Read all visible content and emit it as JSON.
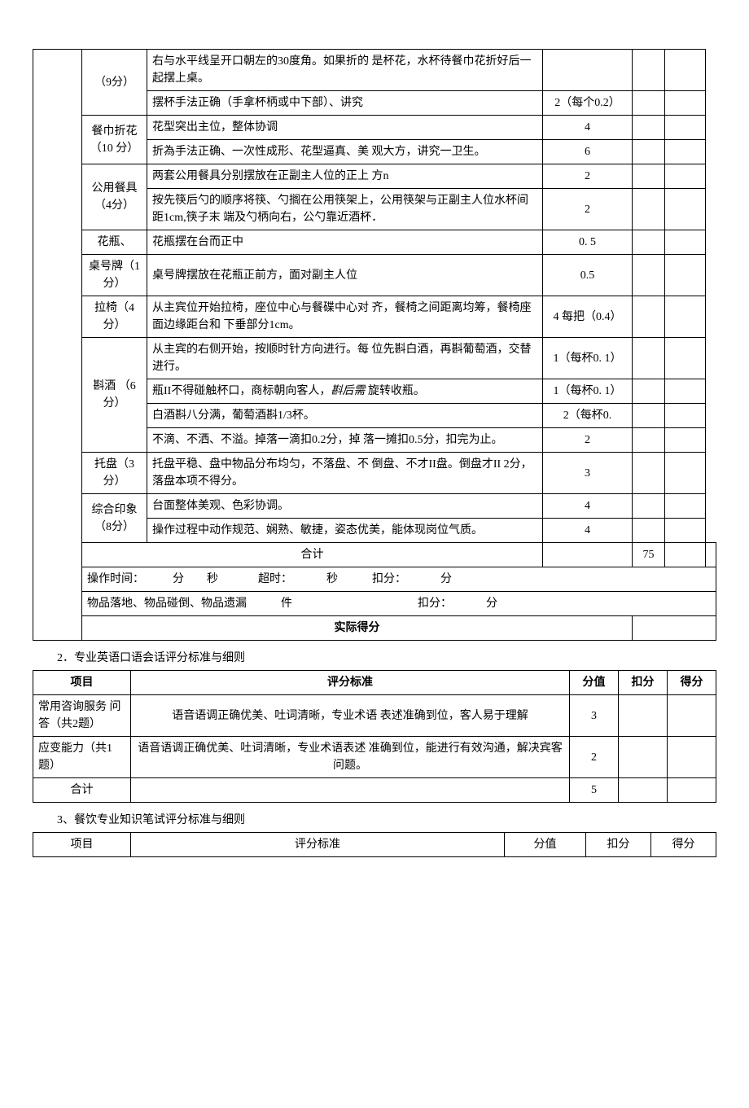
{
  "table1": {
    "rows": [
      {
        "item": "（9分）",
        "desc": "右与水平线呈开口朝左的30度角。如果折的 是杯花，水杯待餐巾花折好后一起摆上桌。",
        "score": ""
      },
      {
        "item": "",
        "desc": "摆杯手法正确（手拿杯柄或中下部）、讲究",
        "score": "2（每个0.2）"
      },
      {
        "item": "餐巾折花（10 分）",
        "desc": "花型突出主位，整体协调",
        "score": "4"
      },
      {
        "item": "",
        "desc": "折為手法正确、一次性成形、花型逼真、美 观大方，讲究一卫生。",
        "score": "6"
      },
      {
        "item": "公用餐具（4分）",
        "desc": "两套公用餐具分别摆放在正副主人位的正上 方n",
        "score": "2"
      },
      {
        "item": "",
        "desc": "按先筷后勺的顺序将筷、勺搁在公用筷架上，公用筷架与正副主人位水杯间距1cm,筷子末 端及勺柄向右，公勺靠近酒杯．",
        "score": "2"
      },
      {
        "item": "花瓶、",
        "desc": "花瓶摆在台而正中",
        "score": "0. 5"
      },
      {
        "item": "桌号牌（1分）",
        "desc": "桌号牌摆放在花瓶正前方，面对副主人位",
        "score": "0.5"
      },
      {
        "item": "拉椅（4分）",
        "desc": "从主宾位开始拉椅，座位中心与餐碟中心对 齐，餐椅之间距离均筹，餐椅座面边缘距台和 下垂部分1cm。",
        "score": "4 每把（0.4）"
      },
      {
        "item": "斟酒 （6分）",
        "desc": "从主宾的右侧开始，按顺时针方向进行。每 位先斟白酒，再斟葡萄酒，交替进行。",
        "score": "1（每杯0. 1）"
      },
      {
        "item": "",
        "desc": "瓶II不得碰触杯口，商标朝向客人，斟后需 旋转收瓶。",
        "score": "1（每杯0. 1）",
        "italic_part": "斟后需"
      },
      {
        "item": "",
        "desc": "白酒斟八分满，葡萄酒斟1/3杯。",
        "score": "2（每杯0."
      },
      {
        "item": "",
        "desc": "不滴、不洒、不溢。掉落一滴扣0.2分，掉 落一摊扣0.5分，扣完为止。",
        "score": "2"
      },
      {
        "item": "托盘（3分）",
        "desc": "托盘平稳、盘中物品分布均匀，不落盘、不 倒盘、不才II盘。倒盘才II 2分，落盘本项不得分。",
        "score": "3"
      },
      {
        "item": "综合印象（8分）",
        "desc": "台面整体美观、色彩协调。",
        "score": "4"
      },
      {
        "item": "",
        "desc": "操作过程中动作规范、娴熟、敏捷，姿态优美，能体现岗位气质。",
        "score": "4"
      }
    ],
    "total_label": "合计",
    "total_score": "75",
    "time_row": "操作时间：          分        秒              超时：            秒            扣分：            分",
    "drop_row": "物品落地、物品碰倒、物品遗漏            件                                            扣分：            分",
    "final_label": "实际得分"
  },
  "section2_title": "2．专业英语口语会话评分标准与细则",
  "table2": {
    "headers": {
      "item": "项目",
      "criteria": "评分标准",
      "score": "分值",
      "deduct": "扣分",
      "final": "得分"
    },
    "rows": [
      {
        "item": "常用咨询服务 问答（共2题）",
        "criteria": "语音语调正确优美、吐词清晰，专业术语 表述准确到位，客人易于理解",
        "score": "3"
      },
      {
        "item": "应变能力（共1题）",
        "criteria": "语音语调正确优美、吐词清晰，专业术语表述 准确到位，能进行有效沟通，解决宾客问题。",
        "score": "2"
      }
    ],
    "total_label": "合计",
    "total_score": "5"
  },
  "section3_title": "3、餐饮专业知识笔试评分标准与细则",
  "table3": {
    "headers": {
      "item": "项目",
      "criteria": "评分标准",
      "score": "分值",
      "deduct": "扣分",
      "final": "得分"
    }
  }
}
